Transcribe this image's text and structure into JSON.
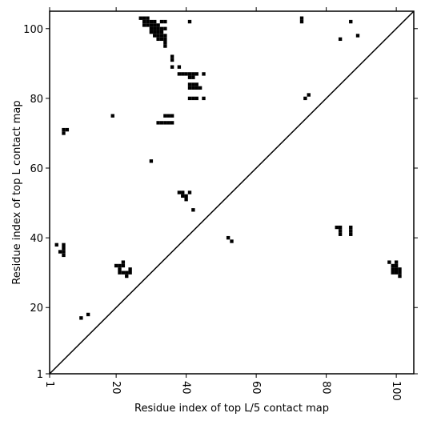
{
  "chart_data": {
    "type": "heatmap",
    "title": "",
    "xlabel": "Residue index of top L/5 contact map",
    "ylabel": "Residue index of top L contact map",
    "xlim": [
      1,
      105
    ],
    "ylim": [
      1,
      105
    ],
    "x_ticks": [
      1,
      20,
      40,
      60,
      80,
      100
    ],
    "y_ticks": [
      1,
      20,
      40,
      60,
      80,
      100
    ],
    "x_tick_labels": [
      "1",
      "20",
      "40",
      "60",
      "80",
      "100"
    ],
    "y_tick_labels": [
      "1",
      "20",
      "40",
      "60",
      "80",
      "100"
    ],
    "grid": false,
    "diagonal_line": true,
    "cell_color": "#000000",
    "upper_triangle_points": [
      [
        27,
        103
      ],
      [
        28,
        103
      ],
      [
        29,
        103
      ],
      [
        28,
        102
      ],
      [
        29,
        102
      ],
      [
        30,
        102
      ],
      [
        31,
        102
      ],
      [
        33,
        102
      ],
      [
        34,
        102
      ],
      [
        41,
        102
      ],
      [
        28,
        101
      ],
      [
        29,
        101
      ],
      [
        30,
        101
      ],
      [
        31,
        101
      ],
      [
        32,
        101
      ],
      [
        30,
        100
      ],
      [
        31,
        100
      ],
      [
        32,
        100
      ],
      [
        33,
        100
      ],
      [
        34,
        100
      ],
      [
        30,
        99
      ],
      [
        31,
        99
      ],
      [
        32,
        99
      ],
      [
        33,
        99
      ],
      [
        31,
        98
      ],
      [
        32,
        98
      ],
      [
        33,
        98
      ],
      [
        34,
        98
      ],
      [
        32,
        97
      ],
      [
        33,
        97
      ],
      [
        34,
        97
      ],
      [
        34,
        96
      ],
      [
        34,
        95
      ],
      [
        36,
        92
      ],
      [
        36,
        91
      ],
      [
        36,
        89
      ],
      [
        38,
        89
      ],
      [
        38,
        87
      ],
      [
        39,
        87
      ],
      [
        40,
        87
      ],
      [
        41,
        87
      ],
      [
        42,
        87
      ],
      [
        43,
        87
      ],
      [
        45,
        87
      ],
      [
        41,
        86
      ],
      [
        42,
        86
      ],
      [
        41,
        84
      ],
      [
        42,
        84
      ],
      [
        43,
        84
      ],
      [
        41,
        83
      ],
      [
        42,
        83
      ],
      [
        43,
        83
      ],
      [
        44,
        83
      ],
      [
        41,
        80
      ],
      [
        42,
        80
      ],
      [
        43,
        80
      ],
      [
        45,
        80
      ],
      [
        34,
        75
      ],
      [
        35,
        75
      ],
      [
        36,
        75
      ],
      [
        19,
        75
      ],
      [
        32,
        73
      ],
      [
        33,
        73
      ],
      [
        34,
        73
      ],
      [
        35,
        73
      ],
      [
        36,
        73
      ],
      [
        5,
        71
      ],
      [
        6,
        71
      ],
      [
        5,
        70
      ],
      [
        30,
        62
      ],
      [
        38,
        53
      ],
      [
        39,
        53
      ],
      [
        41,
        53
      ],
      [
        39,
        52
      ],
      [
        40,
        52
      ],
      [
        40,
        51
      ],
      [
        42,
        48
      ],
      [
        73,
        103
      ],
      [
        73,
        102
      ],
      [
        87,
        102
      ],
      [
        84,
        97
      ],
      [
        89,
        98
      ],
      [
        74,
        80
      ],
      [
        75,
        81
      ]
    ],
    "lower_triangle_points": [
      [
        3,
        38
      ],
      [
        5,
        38
      ],
      [
        5,
        37
      ],
      [
        4,
        36
      ],
      [
        5,
        36
      ],
      [
        5,
        35
      ],
      [
        22,
        33
      ],
      [
        20,
        32
      ],
      [
        21,
        32
      ],
      [
        22,
        32
      ],
      [
        24,
        31
      ],
      [
        21,
        31
      ],
      [
        21,
        30
      ],
      [
        22,
        30
      ],
      [
        23,
        30
      ],
      [
        24,
        30
      ],
      [
        23,
        29
      ],
      [
        10,
        17
      ],
      [
        12,
        18
      ],
      [
        52,
        40
      ],
      [
        53,
        39
      ],
      [
        83,
        43
      ],
      [
        84,
        43
      ],
      [
        84,
        42
      ],
      [
        84,
        41
      ],
      [
        87,
        43
      ],
      [
        87,
        42
      ],
      [
        87,
        41
      ],
      [
        98,
        33
      ],
      [
        100,
        33
      ],
      [
        99,
        32
      ],
      [
        100,
        32
      ],
      [
        99,
        31
      ],
      [
        100,
        31
      ],
      [
        101,
        31
      ],
      [
        99,
        30
      ],
      [
        100,
        30
      ],
      [
        101,
        30
      ],
      [
        101,
        29
      ]
    ]
  }
}
